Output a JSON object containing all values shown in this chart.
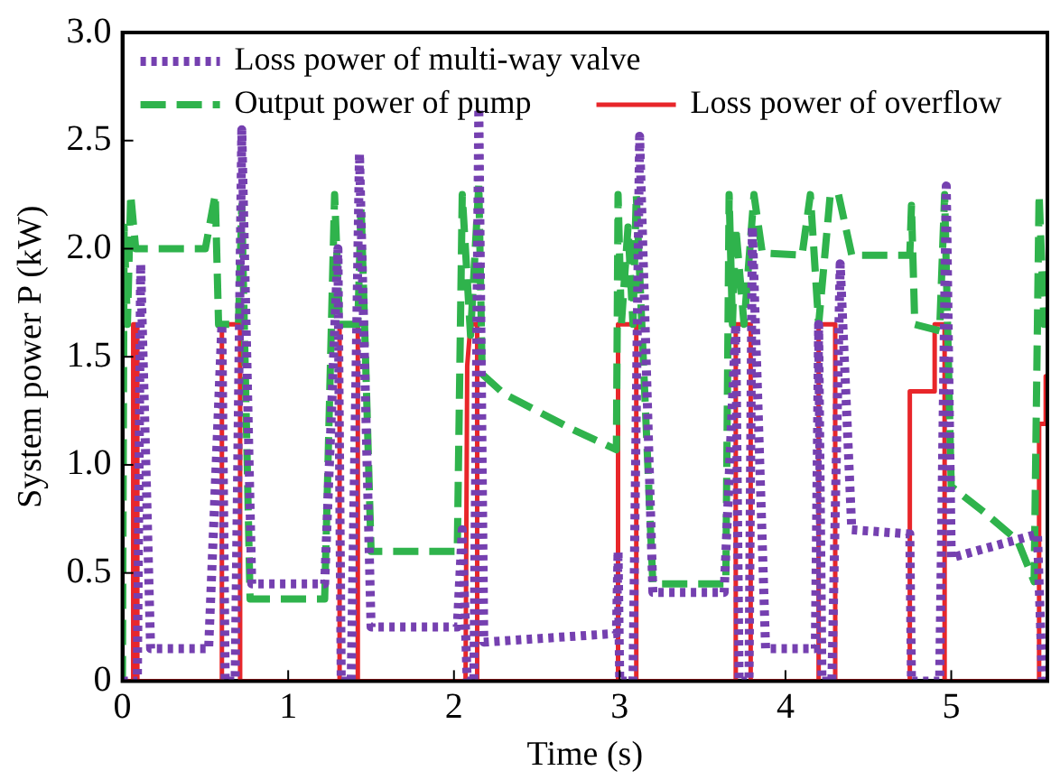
{
  "chart_data": {
    "type": "line",
    "xlabel": "Time (s)",
    "ylabel": "System power P (kW)",
    "xlim": [
      0,
      5.58
    ],
    "xticks": [
      0,
      1,
      2,
      3,
      4,
      5
    ],
    "ylim": [
      0,
      3
    ],
    "yticks": [
      0,
      0.5,
      {
        "value": 1,
        "label": "1.0"
      },
      1.5,
      {
        "value": 2,
        "label": "2.0"
      },
      2.5,
      {
        "value": 3,
        "label": "3.0"
      }
    ],
    "grid": false,
    "legend": "top",
    "marker": "none",
    "series": [
      {
        "name": "Loss power of multi-way valve",
        "color": "#7540b0",
        "line_style": "dotted",
        "x": [
          0,
          0.09,
          0.11,
          0.17,
          0.52,
          0.6,
          0.62,
          0.68,
          0.72,
          0.78,
          1.22,
          1.3,
          1.32,
          1.38,
          1.43,
          1.5,
          2.02,
          2.05,
          2.08,
          2.12,
          2.15,
          2.18,
          2.98,
          2.99,
          3.0,
          3.08,
          3.12,
          3.2,
          3.63,
          3.7,
          3.72,
          3.78,
          3.8,
          3.88,
          4.18,
          4.2,
          4.22,
          4.28,
          4.33,
          4.4,
          4.75,
          4.76,
          4.93,
          4.97,
          5.0,
          5.52,
          5.55,
          5.58
        ],
        "values": [
          0,
          0,
          1.93,
          0.15,
          0.15,
          1.65,
          0,
          0,
          2.55,
          0.45,
          0.45,
          2.0,
          0,
          0,
          2.44,
          0.25,
          0.25,
          0.7,
          0,
          0,
          2.65,
          0.18,
          0.22,
          0.6,
          0,
          0,
          2.52,
          0.41,
          0.41,
          1.65,
          0,
          0,
          2.1,
          0.15,
          0.15,
          1.65,
          0,
          0,
          1.93,
          0.7,
          0.68,
          0,
          0,
          2.29,
          0.57,
          0.68,
          0,
          0
        ]
      },
      {
        "name": "Output power of pump",
        "color": "#2fb34c",
        "line_style": "dashed",
        "x": [
          0,
          0.01,
          0.03,
          0.05,
          0.08,
          0.5,
          0.56,
          0.58,
          0.7,
          0.72,
          0.77,
          1.22,
          1.28,
          1.31,
          1.42,
          1.44,
          1.5,
          2.02,
          2.05,
          2.1,
          2.15,
          2.17,
          2.3,
          2.5,
          2.7,
          2.98,
          2.99,
          3.01,
          3.05,
          3.08,
          3.1,
          3.2,
          3.64,
          3.66,
          3.68,
          3.7,
          3.75,
          3.81,
          3.86,
          4.1,
          4.15,
          4.2,
          4.27,
          4.32,
          4.4,
          4.75,
          4.76,
          4.78,
          4.93,
          4.96,
          5.0,
          5.2,
          5.4,
          5.5,
          5.53,
          5.56,
          5.58
        ],
        "values": [
          0,
          2.1,
          1.65,
          2.25,
          2.0,
          2.0,
          2.25,
          1.65,
          1.65,
          2.2,
          0.38,
          0.38,
          2.25,
          1.65,
          1.65,
          2.2,
          0.6,
          0.6,
          2.25,
          1.6,
          2.3,
          1.42,
          1.33,
          1.25,
          1.17,
          1.07,
          2.25,
          1.65,
          2.1,
          1.65,
          2.25,
          0.45,
          0.45,
          2.25,
          1.65,
          2.1,
          1.65,
          2.25,
          1.98,
          1.97,
          2.25,
          1.65,
          2.25,
          2.25,
          1.97,
          1.97,
          2.2,
          1.65,
          1.62,
          2.25,
          0.9,
          0.78,
          0.65,
          0.46,
          2.25,
          1.65,
          1.65
        ]
      },
      {
        "name": "Loss power of overflow",
        "color": "#e8262a",
        "line_style": "solid",
        "x": [
          0,
          0.065,
          0.065,
          0.09,
          0.09,
          0.6,
          0.6,
          0.71,
          0.71,
          1.31,
          1.31,
          1.42,
          1.42,
          2.07,
          2.08,
          2.1,
          2.14,
          2.14,
          2.99,
          2.99,
          3.1,
          3.1,
          3.7,
          3.7,
          3.79,
          3.79,
          4.2,
          4.2,
          4.3,
          4.3,
          4.75,
          4.75,
          4.9,
          4.9,
          4.96,
          4.96,
          5.53,
          5.53,
          5.57,
          5.57,
          5.58
        ],
        "values": [
          0,
          0,
          1.65,
          1.65,
          0,
          0,
          1.65,
          1.65,
          0,
          0,
          1.65,
          1.65,
          0,
          0,
          1.46,
          1.65,
          1.65,
          0,
          0,
          1.65,
          1.65,
          0,
          0,
          1.65,
          1.65,
          0,
          0,
          1.65,
          1.65,
          0,
          0,
          1.34,
          1.34,
          1.65,
          1.65,
          0,
          0,
          1.19,
          1.19,
          1.41,
          1.41
        ]
      }
    ]
  }
}
